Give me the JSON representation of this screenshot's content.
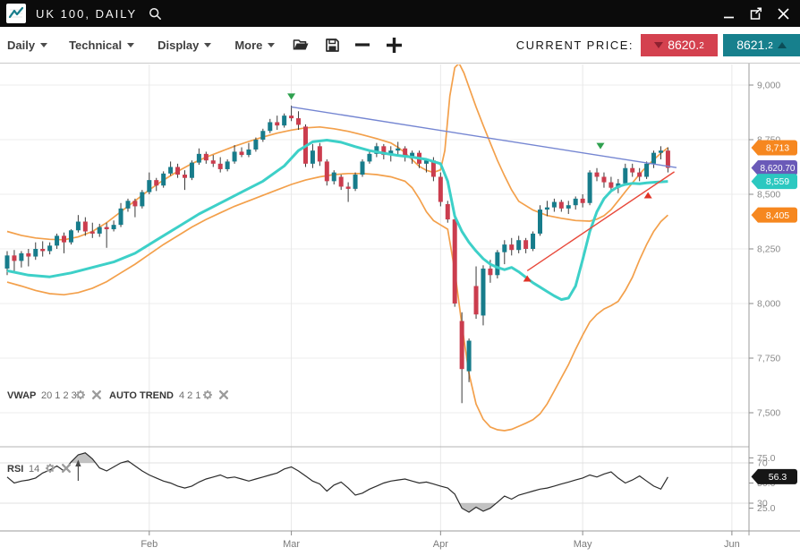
{
  "titlebar": {
    "symbol": "UK 100, DAILY"
  },
  "toolbar": {
    "menus": [
      "Daily",
      "Technical",
      "Display",
      "More"
    ],
    "icon_names": [
      "open-folder-icon",
      "save-icon",
      "zoom-out-icon",
      "zoom-in-icon"
    ],
    "current_price_label": "CURRENT PRICE:",
    "sell_price": "8620.",
    "sell_fraction": "2",
    "buy_price": "8621.",
    "buy_fraction": "2"
  },
  "indicators": {
    "vwap_name": "VWAP",
    "vwap_params": "20 1 2 3",
    "trend_name": "AUTO TREND",
    "trend_params": "4 2 1",
    "rsi_name": "RSI",
    "rsi_params": "14"
  },
  "colors": {
    "up_candle": "#177c8b",
    "down_candle": "#cb3d4e",
    "wick": "#3a3a3a",
    "bollinger": "#f3a04b",
    "vwap": "#3dd0c8",
    "trend_blue": "#7586d2",
    "trend_red": "#e8483a",
    "marker_green": "#2fa14f",
    "marker_red": "#e03226",
    "flag_orange": "#f6871f",
    "flag_purple": "#6a5ab8",
    "flag_cyan": "#2cc8c0",
    "flag_black": "#161616",
    "sell_badge": "#d4414f",
    "buy_badge": "#17808d",
    "grid": "#ededed",
    "grid_v": "#e8e8e8",
    "axis": "#9b9b9b",
    "rsi_fill": "#b3b3b3"
  },
  "price_flags": [
    {
      "text": "8,713",
      "price": 8713,
      "color": "#f6871f"
    },
    {
      "text": "8,620.70",
      "price": 8620.7,
      "color": "#6a5ab8"
    },
    {
      "text": "8,559",
      "price": 8559,
      "color": "#2cc8c0"
    },
    {
      "text": "8,405",
      "price": 8405,
      "color": "#f6871f"
    }
  ],
  "rsi_flag": {
    "text": "56.3",
    "value": 56.3,
    "color": "#161616"
  },
  "chart_data": {
    "type": "candlestick",
    "title": "UK 100, DAILY",
    "price_ticks": [
      {
        "label": "9,000",
        "value": 9000
      },
      {
        "label": "8,750",
        "value": 8750
      },
      {
        "label": "8,500",
        "value": 8500
      },
      {
        "label": "8,250",
        "value": 8250
      },
      {
        "label": "8,000",
        "value": 8000
      },
      {
        "label": "7,750",
        "value": 7750
      },
      {
        "label": "7,500",
        "value": 7500
      }
    ],
    "months": [
      {
        "label": "Feb",
        "ord": 20
      },
      {
        "label": "Mar",
        "ord": 40
      },
      {
        "label": "Apr",
        "ord": 61
      },
      {
        "label": "May",
        "ord": 81
      },
      {
        "label": "Jun",
        "ord": 102
      }
    ],
    "ylim": [
      7380,
      9100
    ],
    "candles": [
      [
        8160,
        8240,
        8130,
        8220
      ],
      [
        8220,
        8245,
        8145,
        8195
      ],
      [
        8195,
        8240,
        8165,
        8230
      ],
      [
        8230,
        8250,
        8170,
        8215
      ],
      [
        8215,
        8280,
        8200,
        8250
      ],
      [
        8250,
        8285,
        8215,
        8240
      ],
      [
        8240,
        8280,
        8225,
        8265
      ],
      [
        8265,
        8320,
        8250,
        8310
      ],
      [
        8310,
        8325,
        8230,
        8280
      ],
      [
        8280,
        8340,
        8270,
        8335
      ],
      [
        8335,
        8405,
        8325,
        8375
      ],
      [
        8375,
        8395,
        8310,
        8330
      ],
      [
        8330,
        8370,
        8300,
        8320
      ],
      [
        8320,
        8365,
        8305,
        8350
      ],
      [
        8350,
        8370,
        8255,
        8340
      ],
      [
        8340,
        8380,
        8330,
        8360
      ],
      [
        8360,
        8460,
        8350,
        8435
      ],
      [
        8435,
        8480,
        8420,
        8470
      ],
      [
        8470,
        8480,
        8395,
        8445
      ],
      [
        8445,
        8520,
        8435,
        8510
      ],
      [
        8510,
        8600,
        8500,
        8565
      ],
      [
        8565,
        8575,
        8515,
        8540
      ],
      [
        8540,
        8605,
        8530,
        8595
      ],
      [
        8595,
        8650,
        8585,
        8625
      ],
      [
        8625,
        8640,
        8575,
        8590
      ],
      [
        8590,
        8610,
        8520,
        8575
      ],
      [
        8575,
        8655,
        8565,
        8645
      ],
      [
        8645,
        8710,
        8635,
        8685
      ],
      [
        8685,
        8695,
        8640,
        8655
      ],
      [
        8655,
        8680,
        8625,
        8640
      ],
      [
        8640,
        8670,
        8600,
        8615
      ],
      [
        8615,
        8660,
        8605,
        8650
      ],
      [
        8650,
        8725,
        8640,
        8695
      ],
      [
        8695,
        8715,
        8670,
        8680
      ],
      [
        8680,
        8735,
        8670,
        8705
      ],
      [
        8705,
        8760,
        8695,
        8750
      ],
      [
        8750,
        8800,
        8740,
        8790
      ],
      [
        8790,
        8845,
        8780,
        8830
      ],
      [
        8830,
        8860,
        8795,
        8815
      ],
      [
        8815,
        8870,
        8805,
        8860
      ],
      [
        8860,
        8906,
        8835,
        8848
      ],
      [
        8848,
        8880,
        8795,
        8818
      ],
      [
        8810,
        8820,
        8625,
        8640
      ],
      [
        8640,
        8730,
        8620,
        8700
      ],
      [
        8720,
        8735,
        8630,
        8650
      ],
      [
        8650,
        8660,
        8540,
        8560
      ],
      [
        8560,
        8610,
        8545,
        8600
      ],
      [
        8580,
        8590,
        8520,
        8535
      ],
      [
        8535,
        8555,
        8465,
        8525
      ],
      [
        8525,
        8600,
        8515,
        8590
      ],
      [
        8590,
        8660,
        8580,
        8650
      ],
      [
        8650,
        8700,
        8640,
        8685
      ],
      [
        8685,
        8735,
        8670,
        8720
      ],
      [
        8720,
        8730,
        8660,
        8680
      ],
      [
        8680,
        8720,
        8650,
        8700
      ],
      [
        8700,
        8740,
        8680,
        8710
      ],
      [
        8710,
        8720,
        8650,
        8670
      ],
      [
        8670,
        8700,
        8640,
        8690
      ],
      [
        8690,
        8700,
        8620,
        8640
      ],
      [
        8640,
        8665,
        8600,
        8655
      ],
      [
        8655,
        8670,
        8560,
        8580
      ],
      [
        8580,
        8600,
        8445,
        8465
      ],
      [
        8455,
        8470,
        8370,
        8385
      ],
      [
        8385,
        8395,
        7985,
        8000
      ],
      [
        7920,
        7960,
        7544,
        7700
      ],
      [
        7690,
        7840,
        7640,
        7830
      ],
      [
        8080,
        8170,
        7930,
        7950
      ],
      [
        7945,
        8175,
        7900,
        8160
      ],
      [
        8160,
        8200,
        8095,
        8130
      ],
      [
        8130,
        8245,
        8115,
        8235
      ],
      [
        8235,
        8290,
        8180,
        8270
      ],
      [
        8270,
        8300,
        8220,
        8245
      ],
      [
        8245,
        8310,
        8230,
        8290
      ],
      [
        8290,
        8300,
        8230,
        8250
      ],
      [
        8250,
        8330,
        8240,
        8320
      ],
      [
        8320,
        8450,
        8310,
        8430
      ],
      [
        8430,
        8470,
        8400,
        8440
      ],
      [
        8440,
        8480,
        8420,
        8465
      ],
      [
        8465,
        8475,
        8420,
        8435
      ],
      [
        8435,
        8470,
        8410,
        8450
      ],
      [
        8450,
        8490,
        8430,
        8480
      ],
      [
        8480,
        8500,
        8440,
        8460
      ],
      [
        8460,
        8610,
        8450,
        8600
      ],
      [
        8600,
        8620,
        8560,
        8580
      ],
      [
        8580,
        8600,
        8530,
        8555
      ],
      [
        8555,
        8580,
        8510,
        8530
      ],
      [
        8530,
        8570,
        8505,
        8550
      ],
      [
        8550,
        8640,
        8540,
        8620
      ],
      [
        8620,
        8640,
        8580,
        8600
      ],
      [
        8600,
        8620,
        8560,
        8580
      ],
      [
        8580,
        8650,
        8570,
        8640
      ],
      [
        8640,
        8700,
        8620,
        8690
      ],
      [
        8690,
        8720,
        8660,
        8700
      ],
      [
        8700,
        8715,
        8600,
        8621
      ]
    ],
    "vwap": [
      [
        0,
        8150
      ],
      [
        3,
        8130
      ],
      [
        6,
        8122
      ],
      [
        9,
        8140
      ],
      [
        12,
        8165
      ],
      [
        15,
        8190
      ],
      [
        18,
        8230
      ],
      [
        21,
        8290
      ],
      [
        24,
        8350
      ],
      [
        27,
        8410
      ],
      [
        30,
        8460
      ],
      [
        33,
        8510
      ],
      [
        36,
        8560
      ],
      [
        39,
        8630
      ],
      [
        41,
        8700
      ],
      [
        43,
        8740
      ],
      [
        45,
        8748
      ],
      [
        47,
        8738
      ],
      [
        49,
        8718
      ],
      [
        51,
        8700
      ],
      [
        53,
        8688
      ],
      [
        55,
        8678
      ],
      [
        57,
        8670
      ],
      [
        59,
        8660
      ],
      [
        60,
        8650
      ],
      [
        61,
        8640
      ],
      [
        62,
        8560
      ],
      [
        63,
        8400
      ],
      [
        64,
        8330
      ],
      [
        65,
        8280
      ],
      [
        66,
        8240
      ],
      [
        67,
        8205
      ],
      [
        68,
        8180
      ],
      [
        69,
        8165
      ],
      [
        70,
        8155
      ],
      [
        71,
        8165
      ],
      [
        72,
        8145
      ],
      [
        73,
        8120
      ],
      [
        74,
        8095
      ],
      [
        75,
        8075
      ],
      [
        76,
        8055
      ],
      [
        77,
        8035
      ],
      [
        78,
        8018
      ],
      [
        79,
        8025
      ],
      [
        80,
        8080
      ],
      [
        81,
        8200
      ],
      [
        82,
        8330
      ],
      [
        83,
        8420
      ],
      [
        84,
        8480
      ],
      [
        85,
        8515
      ],
      [
        86,
        8535
      ],
      [
        87,
        8545
      ],
      [
        88,
        8550
      ],
      [
        89,
        8548
      ],
      [
        90,
        8552
      ],
      [
        91,
        8555
      ],
      [
        92,
        8557
      ],
      [
        93,
        8559
      ]
    ],
    "bb_upper": [
      [
        0,
        8330
      ],
      [
        2,
        8312
      ],
      [
        4,
        8300
      ],
      [
        6,
        8294
      ],
      [
        8,
        8292
      ],
      [
        10,
        8305
      ],
      [
        12,
        8330
      ],
      [
        14,
        8370
      ],
      [
        16,
        8420
      ],
      [
        18,
        8470
      ],
      [
        20,
        8520
      ],
      [
        22,
        8565
      ],
      [
        24,
        8605
      ],
      [
        26,
        8640
      ],
      [
        28,
        8670
      ],
      [
        30,
        8695
      ],
      [
        32,
        8720
      ],
      [
        34,
        8742
      ],
      [
        36,
        8762
      ],
      [
        38,
        8780
      ],
      [
        40,
        8794
      ],
      [
        42,
        8804
      ],
      [
        44,
        8808
      ],
      [
        46,
        8800
      ],
      [
        48,
        8788
      ],
      [
        50,
        8772
      ],
      [
        52,
        8755
      ],
      [
        54,
        8735
      ],
      [
        55,
        8715
      ],
      [
        56,
        8690
      ],
      [
        57,
        8658
      ],
      [
        58,
        8628
      ],
      [
        59,
        8610
      ],
      [
        60,
        8600
      ],
      [
        61,
        8612
      ],
      [
        61.6,
        8700
      ],
      [
        62.3,
        8950
      ],
      [
        63,
        9080
      ],
      [
        63.6,
        9100
      ],
      [
        64.3,
        9055
      ],
      [
        65,
        8990
      ],
      [
        66,
        8900
      ],
      [
        67,
        8815
      ],
      [
        68,
        8735
      ],
      [
        69,
        8655
      ],
      [
        70,
        8585
      ],
      [
        71,
        8520
      ],
      [
        72,
        8468
      ],
      [
        74,
        8428
      ],
      [
        76,
        8403
      ],
      [
        78,
        8390
      ],
      [
        80,
        8380
      ],
      [
        82,
        8377
      ],
      [
        83,
        8386
      ],
      [
        84,
        8402
      ],
      [
        85,
        8430
      ],
      [
        86,
        8470
      ],
      [
        87,
        8512
      ],
      [
        88,
        8552
      ],
      [
        89,
        8592
      ],
      [
        90,
        8628
      ],
      [
        91,
        8658
      ],
      [
        92,
        8688
      ],
      [
        93,
        8713
      ]
    ],
    "bb_lower": [
      [
        0,
        8098
      ],
      [
        2,
        8080
      ],
      [
        4,
        8060
      ],
      [
        6,
        8045
      ],
      [
        8,
        8040
      ],
      [
        10,
        8050
      ],
      [
        12,
        8070
      ],
      [
        14,
        8100
      ],
      [
        16,
        8140
      ],
      [
        18,
        8180
      ],
      [
        20,
        8225
      ],
      [
        22,
        8270
      ],
      [
        24,
        8310
      ],
      [
        26,
        8350
      ],
      [
        28,
        8385
      ],
      [
        30,
        8415
      ],
      [
        32,
        8445
      ],
      [
        34,
        8470
      ],
      [
        36,
        8495
      ],
      [
        38,
        8520
      ],
      [
        40,
        8545
      ],
      [
        42,
        8565
      ],
      [
        44,
        8580
      ],
      [
        46,
        8590
      ],
      [
        48,
        8595
      ],
      [
        50,
        8595
      ],
      [
        52,
        8590
      ],
      [
        54,
        8580
      ],
      [
        56,
        8560
      ],
      [
        57,
        8530
      ],
      [
        58,
        8480
      ],
      [
        59,
        8420
      ],
      [
        60,
        8380
      ],
      [
        61,
        8360
      ],
      [
        62,
        8340
      ],
      [
        63,
        8150
      ],
      [
        64,
        7900
      ],
      [
        65,
        7680
      ],
      [
        66,
        7540
      ],
      [
        67,
        7470
      ],
      [
        68,
        7435
      ],
      [
        69,
        7422
      ],
      [
        70,
        7418
      ],
      [
        71,
        7424
      ],
      [
        72,
        7438
      ],
      [
        73,
        7452
      ],
      [
        74,
        7468
      ],
      [
        75,
        7495
      ],
      [
        76,
        7540
      ],
      [
        77,
        7600
      ],
      [
        78,
        7660
      ],
      [
        79,
        7720
      ],
      [
        80,
        7790
      ],
      [
        81,
        7855
      ],
      [
        82,
        7915
      ],
      [
        83,
        7950
      ],
      [
        84,
        7975
      ],
      [
        85,
        7990
      ],
      [
        86,
        8010
      ],
      [
        87,
        8060
      ],
      [
        88,
        8120
      ],
      [
        89,
        8200
      ],
      [
        90,
        8270
      ],
      [
        91,
        8330
      ],
      [
        92,
        8375
      ],
      [
        93,
        8405
      ]
    ],
    "trendlines": [
      {
        "name": "descending-resistance",
        "color": "#7586d2",
        "o1": 40,
        "p1": 8900,
        "o2": 94.2,
        "p2": 8622
      },
      {
        "name": "ascending-support",
        "color": "#e8483a",
        "o1": 73.2,
        "p1": 8150,
        "o2": 93.9,
        "p2": 8603
      }
    ],
    "markers": [
      {
        "dir": "down",
        "color": "#2fa14f",
        "o": 40,
        "p": 8947
      },
      {
        "dir": "down",
        "color": "#2fa14f",
        "o": 83.5,
        "p": 8721
      },
      {
        "dir": "up",
        "color": "#e03226",
        "o": 73.2,
        "p": 8115
      },
      {
        "dir": "up",
        "color": "#e03226",
        "o": 90.2,
        "p": 8496
      }
    ],
    "rsi": {
      "overbought": 70,
      "oversold": 30,
      "ticks": [
        {
          "label": "75.0",
          "value": 75
        },
        {
          "label": "70",
          "value": 70
        },
        {
          "label": "50.0",
          "value": 50
        },
        {
          "label": "30",
          "value": 30
        },
        {
          "label": "25.0",
          "value": 25
        }
      ],
      "values": [
        56,
        50,
        52,
        53,
        55,
        60,
        63,
        67,
        62,
        71,
        78,
        80,
        74,
        65,
        62,
        66,
        70,
        72,
        67,
        62,
        58,
        55,
        52,
        50,
        47,
        45,
        47,
        51,
        54,
        56,
        58,
        55,
        56,
        54,
        52,
        54,
        56,
        58,
        60,
        64,
        66,
        62,
        57,
        52,
        49,
        42,
        48,
        51,
        45,
        38,
        40,
        44,
        47,
        50,
        52,
        53,
        54,
        52,
        50,
        51,
        49,
        47,
        45,
        39,
        25,
        21,
        26,
        22,
        25,
        31,
        37,
        34,
        38,
        40,
        42,
        44,
        45,
        47,
        49,
        51,
        53,
        55,
        58,
        56,
        59,
        61,
        55,
        50,
        53,
        57,
        52,
        47,
        44,
        56
      ],
      "arrow_ord": 10
    }
  }
}
